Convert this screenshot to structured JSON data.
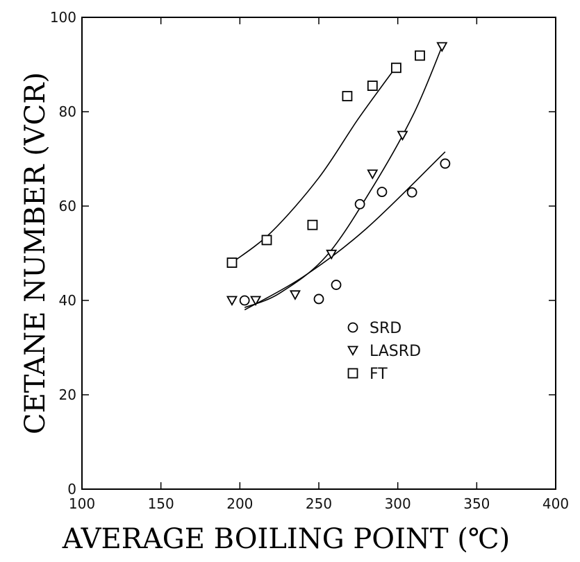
{
  "chart_data": {
    "type": "scatter",
    "title": "",
    "xlabel": "AVERAGE BOILING POINT (℃)",
    "ylabel": "CETANE NUMBER (VCR)",
    "xlim": [
      100,
      400
    ],
    "ylim": [
      0,
      100
    ],
    "x_ticks": [
      100,
      150,
      200,
      250,
      300,
      350,
      400
    ],
    "y_ticks": [
      0,
      20,
      40,
      60,
      80,
      100
    ],
    "grid": false,
    "legend_position": "center-right",
    "series": [
      {
        "name": "SRD",
        "marker": "circle",
        "points": [
          [
            203,
            40
          ],
          [
            250,
            40.3
          ],
          [
            261,
            43.3
          ],
          [
            276,
            60.4
          ],
          [
            290,
            63
          ],
          [
            309,
            62.9
          ],
          [
            330,
            69
          ]
        ],
        "fit": [
          [
            203,
            38
          ],
          [
            240,
            45
          ],
          [
            280,
            55.2
          ],
          [
            330,
            71.5
          ]
        ]
      },
      {
        "name": "LASRD",
        "marker": "triangle-down",
        "points": [
          [
            195,
            40
          ],
          [
            210,
            40
          ],
          [
            235,
            41.2
          ],
          [
            258,
            49.8
          ],
          [
            284,
            66.8
          ],
          [
            303,
            75
          ],
          [
            328,
            93.8
          ]
        ],
        "fit": [
          [
            203,
            38.5
          ],
          [
            225,
            41.5
          ],
          [
            255,
            49.5
          ],
          [
            285,
            64.5
          ],
          [
            310,
            79.5
          ],
          [
            328,
            93.8
          ]
        ]
      },
      {
        "name": "FT",
        "marker": "square",
        "points": [
          [
            195,
            48
          ],
          [
            217,
            52.8
          ],
          [
            246,
            56
          ],
          [
            268,
            83.3
          ],
          [
            284,
            85.5
          ],
          [
            299,
            89.3
          ],
          [
            314,
            91.9
          ]
        ],
        "fit": [
          [
            195,
            48
          ],
          [
            220,
            54.5
          ],
          [
            250,
            66
          ],
          [
            275,
            78.5
          ],
          [
            300,
            90
          ]
        ]
      }
    ]
  }
}
